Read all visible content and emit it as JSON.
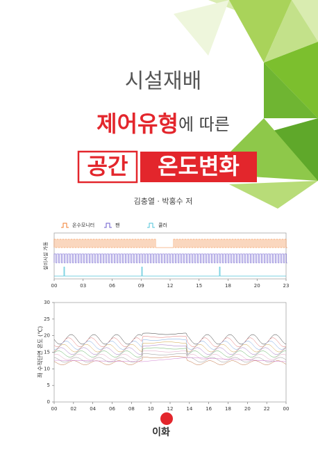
{
  "title": {
    "line1": "시설재배",
    "line2_main": "제어유형",
    "line2_rest": "에 따른",
    "line3_box1": "공간",
    "line3_box2": "온도변화"
  },
  "author": "김충열 · 박홍수 저",
  "chart1": {
    "legend": [
      "온수모니터",
      "팬",
      "쿨러"
    ],
    "ylabel": "설비시설 가동",
    "xticks": [
      "00",
      "03",
      "06",
      "09",
      "12",
      "15",
      "18",
      "20",
      "23"
    ]
  },
  "chart2": {
    "ylabel": "좌 수직단면 온도 (℃)",
    "yticks": [
      0,
      5,
      10,
      15,
      20,
      25,
      30
    ],
    "xticks": [
      "00",
      "02",
      "04",
      "06",
      "08",
      "10",
      "12",
      "14",
      "16",
      "18",
      "20",
      "22",
      "00"
    ]
  },
  "publisher": "이화"
}
